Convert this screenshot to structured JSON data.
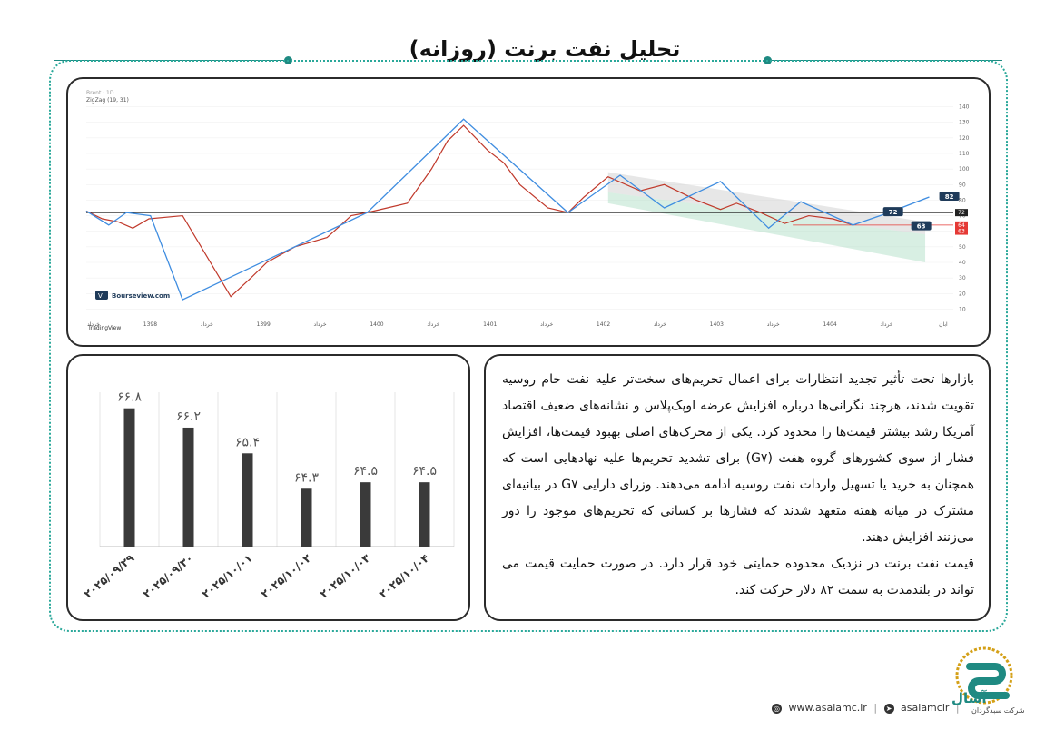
{
  "page": {
    "title": "تحلیل نفت برنت (روزانه)",
    "accent_color": "#1f8a82",
    "paragraph1": "بازارها تحت تأثیر تجدید انتظارات برای اعمال تحریم‌های سخت‌تر علیه نفت خام روسیه تقویت شدند، هرچند نگرانی‌ها درباره افزایش عرضه اوپک‌پلاس و نشانه‌های ضعیف اقتصاد آمریکا رشد بیشتر قیمت‌ها را محدود کرد. یکی از محرک‌های اصلی بهبود قیمت‌ها، افزایش فشار از سوی کشورهای گروه هفت (G۷) برای تشدید تحریم‌ها علیه نهادهایی است که همچنان به خرید یا تسهیل واردات نفت روسیه ادامه می‌دهند. وزرای دارایی G۷ در بیانیه‌ای مشترک در میانه هفته متعهد شدند که فشارها بر کسانی که تحریم‌های موجود را دور می‌زنند افزایش دهند.",
    "paragraph2": "قیمت نفت برنت در نزدیک محدوده حمایتی خود قرار دارد. در صورت حمایت قیمت می تواند در بلندمدت به سمت ۸۲ دلار حرکت کند.",
    "footer_web": "www.asalamc.ir",
    "footer_social": "asalamcir",
    "brand_name": "آسال",
    "brand_sub": "شرکت سبدگردان"
  },
  "chart_data": [
    {
      "type": "line",
      "title": "",
      "header_text": "ZigZag (19, 31)",
      "watermark": "Bourseview.com",
      "platform": "TradingView",
      "x_ticks": [
        "خرداد",
        "1398",
        "خرداد",
        "1399",
        "خرداد",
        "1400",
        "خرداد",
        "1401",
        "خرداد",
        "1402",
        "خرداد",
        "1403",
        "خرداد",
        "1404",
        "خرداد",
        "آبان"
      ],
      "y_ticks": [
        10,
        20,
        30,
        40,
        50,
        60,
        70,
        80,
        90,
        100,
        110,
        120,
        130,
        140
      ],
      "ylim": [
        5,
        145
      ],
      "price_path": {
        "x": [
          0,
          20,
          40,
          58,
          78,
          120,
          180,
          205,
          225,
          260,
          300,
          330,
          350,
          375,
          400,
          430,
          450,
          470,
          500,
          520,
          540,
          575,
          600,
          620,
          650,
          690,
          720,
          760,
          790,
          810,
          840,
          870,
          900,
          930,
          955
        ],
        "y": [
          73,
          68,
          66,
          62,
          68,
          70,
          18,
          30,
          40,
          50,
          56,
          70,
          72,
          75,
          78,
          100,
          118,
          128,
          112,
          104,
          90,
          75,
          72,
          82,
          95,
          86,
          90,
          80,
          74,
          78,
          72,
          65,
          70,
          68,
          64
        ]
      },
      "zigzag": {
        "x": [
          0,
          28,
          50,
          80,
          120,
          350,
          470,
          600,
          665,
          720,
          790,
          850,
          890,
          955
        ],
        "y": [
          73,
          64,
          72,
          70,
          16,
          72,
          132,
          72,
          96,
          75,
          92,
          62,
          79,
          64
        ]
      },
      "horizontal_levels": [
        {
          "value": 72,
          "label": "72",
          "color": "#111111"
        },
        {
          "value": 64,
          "label": "64",
          "color": "#e53935"
        },
        {
          "value": 63,
          "label": "63",
          "color": "#e53935"
        }
      ],
      "projection": {
        "x": [
          955,
          1000,
          1050
        ],
        "y": [
          64,
          72,
          82
        ]
      },
      "annotations": [
        {
          "label": "72",
          "x": 1005,
          "y": 72
        },
        {
          "label": "63",
          "x": 1040,
          "y": 63
        },
        {
          "label": "82",
          "x": 1075,
          "y": 82
        }
      ],
      "right_markers": [
        "72",
        "64",
        "63"
      ]
    },
    {
      "type": "bar",
      "categories": [
        "۲۰۲۵/۰۹/۲۹",
        "۲۰۲۵/۰۹/۳۰",
        "۲۰۲۵/۱۰/۰۱",
        "۲۰۲۵/۱۰/۰۲",
        "۲۰۲۵/۱۰/۰۳",
        "۲۰۲۵/۱۰/۰۴"
      ],
      "values": [
        66.8,
        66.2,
        65.4,
        64.3,
        64.5,
        64.5
      ],
      "value_labels": [
        "۶۶.۸",
        "۶۶.۲",
        "۶۵.۴",
        "۶۴.۳",
        "۶۴.۵",
        "۶۴.۵"
      ],
      "ylim": [
        62.5,
        67.3
      ],
      "bar_color": "#3a3a3a",
      "grid": true
    }
  ]
}
